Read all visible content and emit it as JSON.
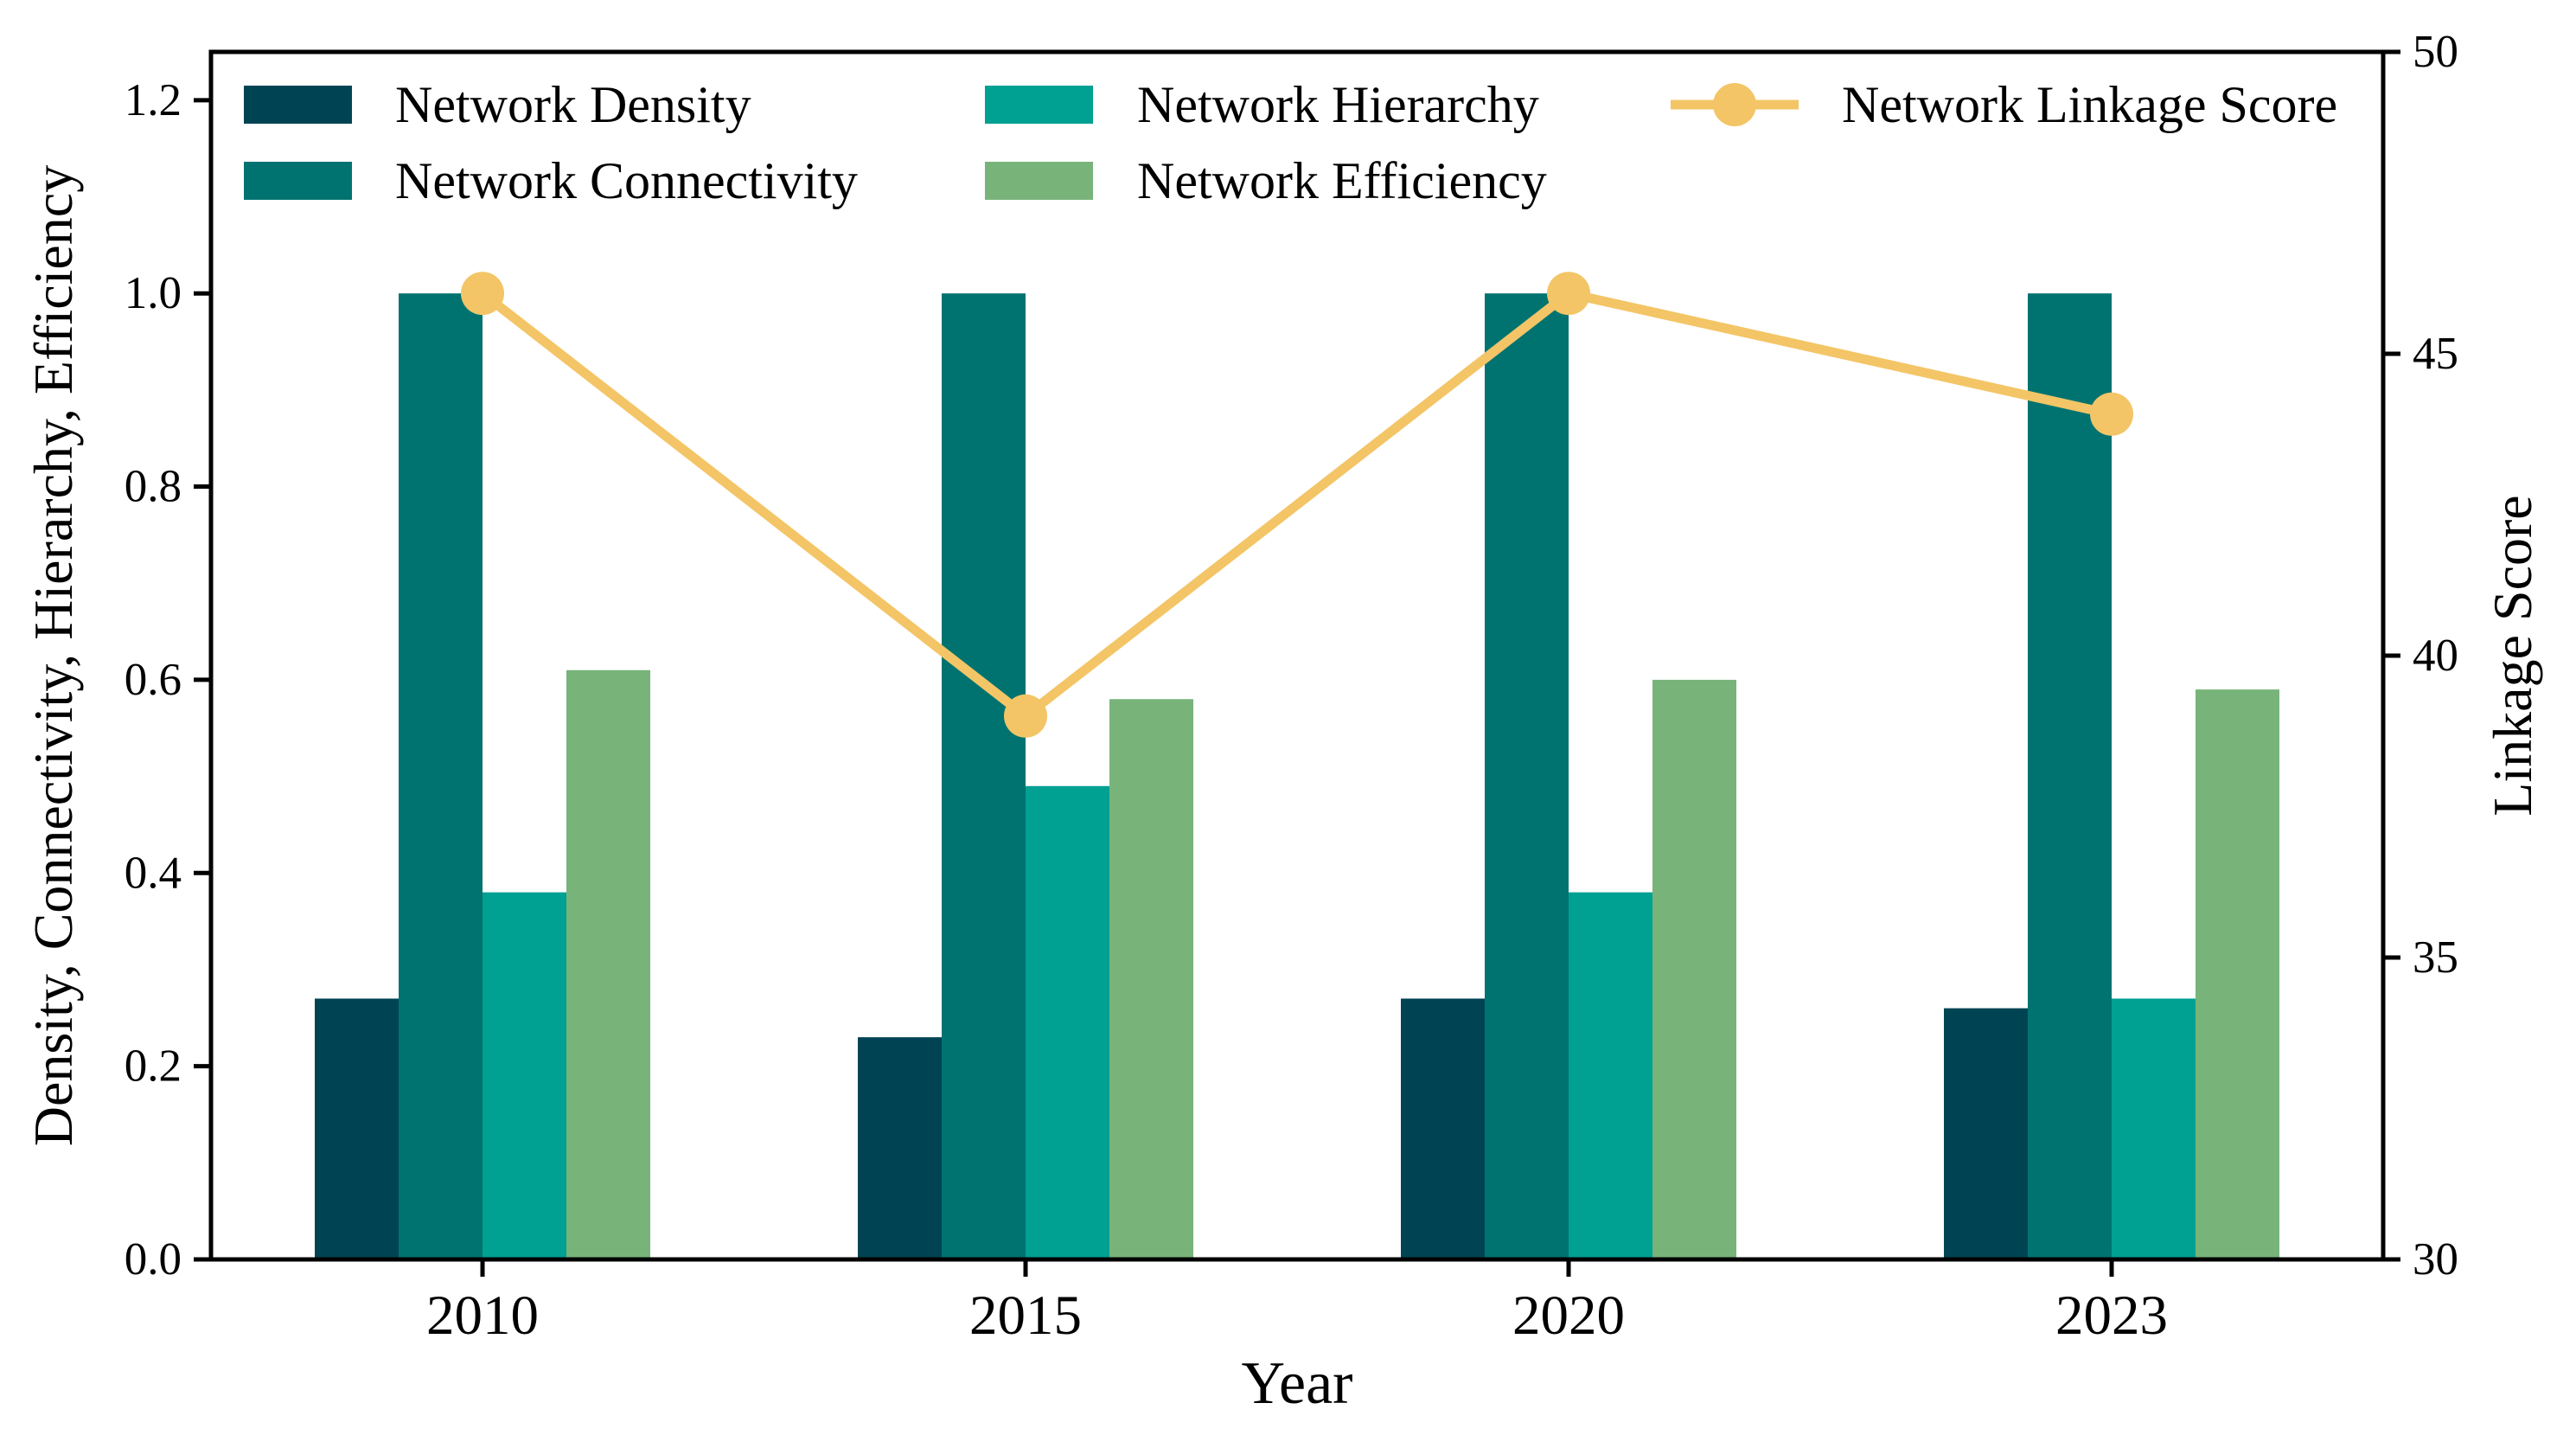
{
  "figure": {
    "background": "#ffffff",
    "text_color": "#000000"
  },
  "chart_data": {
    "type": "bar",
    "subtype": "grouped-bars-with-line-overlay",
    "categories": [
      "2010",
      "2015",
      "2020",
      "2023"
    ],
    "series": [
      {
        "name": "Network Density",
        "type": "bar",
        "axis": "left",
        "color": "#004454",
        "values": [
          0.27,
          0.23,
          0.27,
          0.26
        ]
      },
      {
        "name": "Network Connectivity",
        "type": "bar",
        "axis": "left",
        "color": "#007370",
        "values": [
          1.0,
          1.0,
          1.0,
          1.0
        ]
      },
      {
        "name": "Network Hierarchy",
        "type": "bar",
        "axis": "left",
        "color": "#00a092",
        "values": [
          0.38,
          0.49,
          0.38,
          0.27
        ]
      },
      {
        "name": "Network Efficiency",
        "type": "bar",
        "axis": "left",
        "color": "#78b47a",
        "values": [
          0.61,
          0.58,
          0.6,
          0.59
        ]
      },
      {
        "name": "Network Linkage Score",
        "type": "line",
        "axis": "right",
        "color": "#f3c566",
        "values": [
          46,
          39,
          46,
          44
        ]
      }
    ],
    "xlabel": "Year",
    "ylabel_left": "Density, Connectivity, Hierarchy, Efficiency",
    "ylabel_right": "Linkage Score",
    "left_axis": {
      "min": 0,
      "max": 1.25,
      "tick_labels": [
        "0.0",
        "0.2",
        "0.4",
        "0.6",
        "0.8",
        "1.0",
        "1.2"
      ],
      "tick_values": [
        0.0,
        0.2,
        0.4,
        0.6,
        0.8,
        1.0,
        1.2
      ]
    },
    "right_axis": {
      "min": 30,
      "max": 50,
      "tick_labels": [
        "30",
        "35",
        "40",
        "45",
        "50"
      ],
      "tick_values": [
        30,
        35,
        40,
        45,
        50
      ]
    },
    "grid": false,
    "legend_position": "upper-left-inside, 3 columns x 2 rows"
  }
}
